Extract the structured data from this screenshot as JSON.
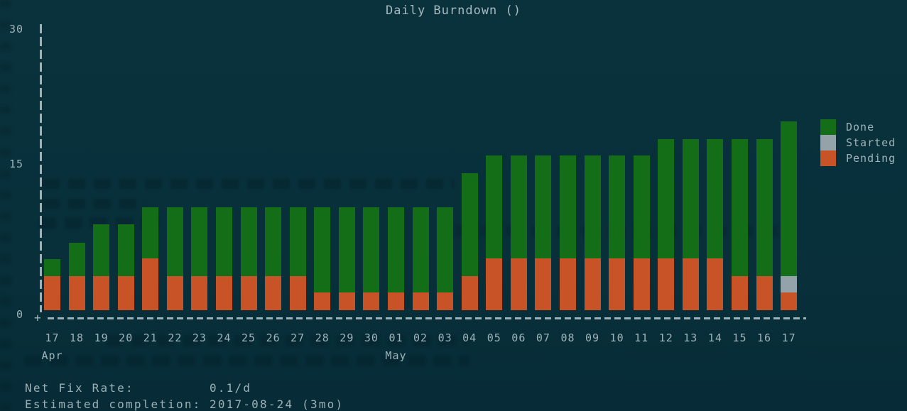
{
  "chart_data": {
    "type": "bar",
    "stacked": true,
    "title": "Daily Burndown ()",
    "categories": [
      "17",
      "18",
      "19",
      "20",
      "21",
      "22",
      "23",
      "24",
      "25",
      "26",
      "27",
      "28",
      "29",
      "30",
      "01",
      "02",
      "03",
      "04",
      "05",
      "06",
      "07",
      "08",
      "09",
      "10",
      "11",
      "12",
      "13",
      "14",
      "15",
      "16",
      "17"
    ],
    "x_month_labels": [
      {
        "index": 0,
        "label": "Apr"
      },
      {
        "index": 14,
        "label": "May"
      }
    ],
    "series": [
      {
        "name": "Pending",
        "color": "#c75327",
        "values": [
          3.5,
          3.5,
          3.5,
          3.5,
          5.3,
          3.5,
          3.5,
          3.5,
          3.5,
          3.5,
          3.5,
          1.8,
          1.8,
          1.8,
          1.8,
          1.8,
          1.8,
          3.5,
          5.3,
          5.3,
          5.3,
          5.3,
          5.3,
          5.3,
          5.3,
          5.3,
          5.3,
          5.3,
          3.5,
          3.5,
          1.8
        ]
      },
      {
        "name": "Started",
        "color": "#93a3a9",
        "values": [
          0,
          0,
          0,
          0,
          0,
          0,
          0,
          0,
          0,
          0,
          0,
          0,
          0,
          0,
          0,
          0,
          0,
          0,
          0,
          0,
          0,
          0,
          0,
          0,
          0,
          0,
          0,
          0,
          0,
          0,
          1.7
        ]
      },
      {
        "name": "Done",
        "color": "#146e17",
        "values": [
          1.7,
          3.4,
          5.3,
          5.3,
          5.2,
          7,
          7,
          7,
          7,
          7,
          7,
          8.7,
          8.7,
          8.7,
          8.7,
          8.7,
          8.7,
          10.5,
          10.5,
          10.5,
          10.5,
          10.5,
          10.5,
          10.5,
          10.5,
          12.2,
          12.2,
          12.2,
          14,
          14,
          15.8
        ]
      }
    ],
    "ylim": [
      0,
      30
    ],
    "y_tick_labels": [
      "30",
      "15",
      "0"
    ],
    "y_tick_values": [
      30,
      15,
      0
    ],
    "origin_glyph": "+",
    "grid": false,
    "axis_style": "dashed-ascii",
    "legend_position": "right",
    "legend_order": [
      "Done",
      "Started",
      "Pending"
    ]
  },
  "legend": [
    {
      "label": "Done",
      "color": "#146e17"
    },
    {
      "label": "Started",
      "color": "#93a3a9"
    },
    {
      "label": "Pending",
      "color": "#c75327"
    }
  ],
  "footer": {
    "lines": [
      {
        "label": "Net Fix Rate:",
        "value": "0.1/d"
      },
      {
        "label": "Estimated completion:",
        "value": "2017-08-24 (3mo)"
      }
    ]
  }
}
